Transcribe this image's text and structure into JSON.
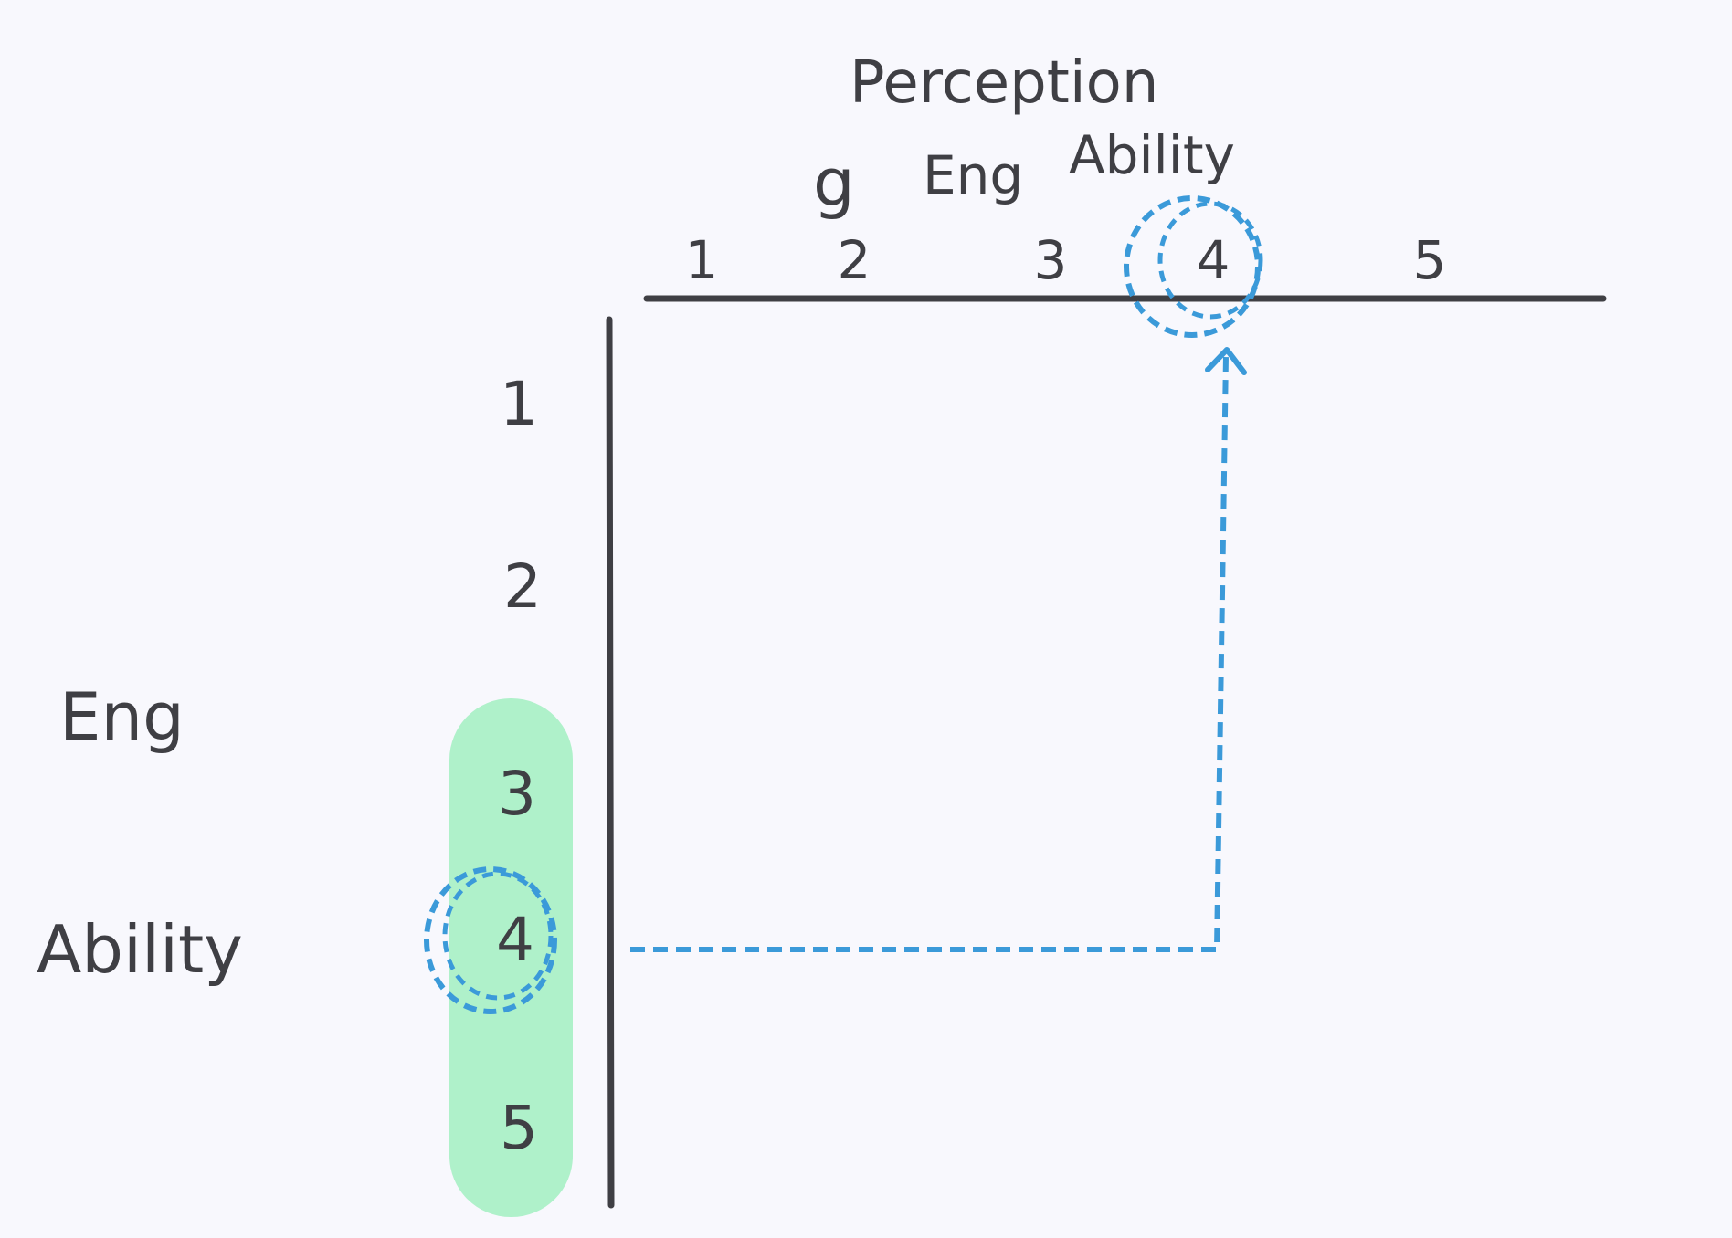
{
  "title": {
    "line1": "Perception",
    "line2_prefix": "g",
    "line2_a": "Eng",
    "line2_b": "Ability"
  },
  "side_label": {
    "line1": "Eng",
    "line2": "Ability"
  },
  "x_ticks": [
    "1",
    "2",
    "3",
    "4",
    "5"
  ],
  "y_ticks": [
    "1",
    "2",
    "3",
    "4",
    "5"
  ],
  "highlight": {
    "y_range": [
      "3",
      "5"
    ],
    "color": "#a6f0c4"
  },
  "selection": {
    "y_value": "4",
    "x_value": "4",
    "color": "#3b9ad9"
  },
  "colors": {
    "ink": "#3f3f44",
    "background": "#f8f8fd"
  }
}
